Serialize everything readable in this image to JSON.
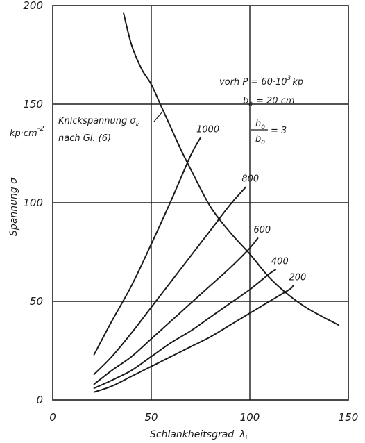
{
  "chart_data": {
    "type": "line",
    "title": "",
    "xlabel": "Schlankheitsgrad",
    "xlabel_symbol": "λ",
    "xlabel_subscript": "i",
    "ylabel": "Spannung σ",
    "y_unit_label": "kp·cm",
    "y_unit_exponent": "-2",
    "xlim": [
      0,
      150
    ],
    "ylim": [
      0,
      200
    ],
    "x_ticks": [
      "0",
      "50",
      "100",
      "150"
    ],
    "y_ticks": [
      "0",
      "50",
      "100",
      "150",
      "200"
    ],
    "x_tick_values": [
      0,
      50,
      100,
      150
    ],
    "y_tick_values": [
      0,
      50,
      100,
      150,
      200
    ],
    "grid": true,
    "grid_x": [
      50,
      100
    ],
    "grid_y": [
      50,
      100,
      150
    ],
    "annotations": {
      "buckling_line1": "Knickspannung σ",
      "buckling_line1_sub": "k",
      "buckling_line2": "nach Gl. (6)",
      "load_line": "vorh P = 60·10",
      "load_exp": "3",
      "load_unit": "kp",
      "b0_label": "b",
      "b0_sub": "0",
      "b0_value": "=      20 cm",
      "ratio_num": "h",
      "ratio_num_sub": "0",
      "ratio_den": "b",
      "ratio_den_sub": "0",
      "ratio_value": "= 3"
    },
    "series": [
      {
        "name": "Knickspannung σk",
        "x": [
          36,
          40,
          45,
          50,
          55,
          60,
          65,
          70,
          80,
          90,
          100,
          110,
          120,
          130,
          145
        ],
        "y": [
          196,
          180,
          168,
          160,
          149,
          138,
          127,
          117,
          98,
          85,
          74,
          62,
          53,
          46,
          38
        ]
      },
      {
        "name": "1000",
        "x": [
          21,
          30,
          40,
          50,
          60,
          70,
          75
        ],
        "y": [
          23,
          40,
          58,
          79,
          101,
          124,
          133
        ]
      },
      {
        "name": "800",
        "x": [
          21,
          30,
          40,
          50,
          60,
          70,
          80,
          90,
          98
        ],
        "y": [
          13,
          22,
          34,
          47,
          60,
          73,
          86,
          99,
          108
        ]
      },
      {
        "name": "600",
        "x": [
          21,
          30,
          40,
          50,
          60,
          70,
          80,
          90,
          100,
          104
        ],
        "y": [
          8,
          15,
          22,
          31,
          40,
          49,
          58,
          67,
          77,
          82
        ]
      },
      {
        "name": "400",
        "x": [
          21,
          30,
          40,
          50,
          60,
          70,
          80,
          90,
          100,
          110,
          113
        ],
        "y": [
          6,
          10,
          15,
          22,
          29,
          35,
          42,
          49,
          56,
          64,
          66
        ]
      },
      {
        "name": "200",
        "x": [
          21,
          30,
          40,
          50,
          60,
          70,
          80,
          90,
          100,
          110,
          120,
          122
        ],
        "y": [
          4,
          7,
          12,
          17,
          22,
          27,
          32,
          38,
          44,
          50,
          56,
          58
        ]
      }
    ]
  }
}
